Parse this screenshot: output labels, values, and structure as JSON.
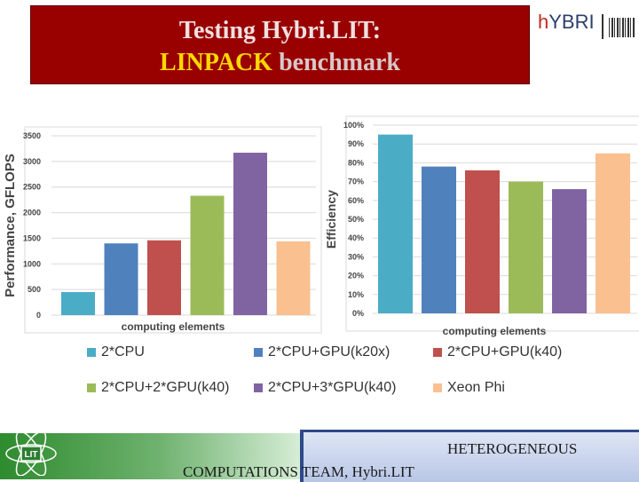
{
  "slide": {
    "title_line1": "Testing  Hybri.LIT:",
    "title_line2_highlight": "LINPACK",
    "title_line2_rest": " benchmark",
    "logo_text_h": "h",
    "logo_text_rest": "YBRI",
    "footer_line1": "HETEROGENEOUS",
    "footer_line2": "COMPUTATIONS TEAM, Hybri.LIT",
    "footer_logo_text": "LIT"
  },
  "colors": [
    "#4BACC6",
    "#4F81BD",
    "#C0504D",
    "#9BBB59",
    "#8064A2",
    "#FAC090"
  ],
  "chart_data": [
    {
      "type": "bar",
      "categories": [
        "2*CPU",
        "2*CPU+GPU(k20x)",
        "2*CPU+GPU(k40)",
        "2*CPU+2*GPU(k40)",
        "2*CPU+3*GPU(k40)",
        "Xeon Phi"
      ],
      "values": [
        450,
        1400,
        1460,
        2330,
        3170,
        1440
      ],
      "xlabel": "computing elements",
      "ylabel": "Performance, GFLOPS",
      "ylim": [
        0,
        3500
      ],
      "yticks": [
        "0",
        "500",
        "1000",
        "1500",
        "2000",
        "2500",
        "3000",
        "3500"
      ],
      "grid": true
    },
    {
      "type": "bar",
      "categories": [
        "2*CPU",
        "2*CPU+GPU(k20x)",
        "2*CPU+GPU(k40)",
        "2*CPU+2*GPU(k40)",
        "2*CPU+3*GPU(k40)",
        "Xeon Phi"
      ],
      "values": [
        95,
        78,
        76,
        70,
        66,
        85
      ],
      "xlabel": "computing elements",
      "ylabel": "Efficiency",
      "ylim": [
        0,
        100
      ],
      "yticks": [
        "0%",
        "10%",
        "20%",
        "30%",
        "40%",
        "50%",
        "60%",
        "70%",
        "80%",
        "90%",
        "100%"
      ],
      "grid": true
    }
  ],
  "legend": {
    "placement": "bottom",
    "entries": [
      "2*CPU",
      "2*CPU+GPU(k20x)",
      "2*CPU+GPU(k40)",
      "2*CPU+2*GPU(k40)",
      "2*CPU+3*GPU(k40)",
      "Xeon Phi"
    ]
  }
}
